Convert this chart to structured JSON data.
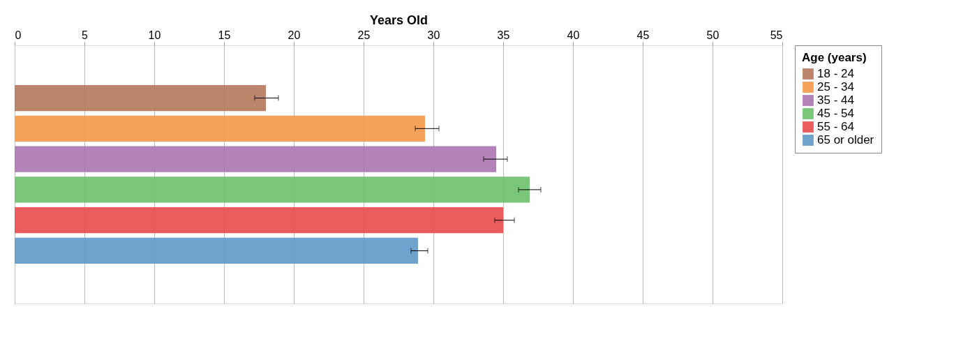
{
  "chart_data": {
    "type": "bar",
    "orientation": "horizontal",
    "xlabel": "Years Old",
    "legend_title": "Age (years)",
    "categories": [
      null
    ],
    "series": [
      {
        "name": "18 - 24",
        "color": "#b5775a",
        "values": [
          18.0
        ],
        "errors": [
          [
            17.2,
            18.9
          ]
        ]
      },
      {
        "name": "25 - 34",
        "color": "#f59848",
        "values": [
          29.4
        ],
        "errors": [
          [
            28.7,
            30.4
          ]
        ]
      },
      {
        "name": "35 - 44",
        "color": "#ab74b0",
        "values": [
          34.5
        ],
        "errors": [
          [
            33.6,
            35.3
          ]
        ]
      },
      {
        "name": "45 - 54",
        "color": "#6cc06c",
        "values": [
          36.9
        ],
        "errors": [
          [
            36.1,
            37.7
          ]
        ]
      },
      {
        "name": "55 - 64",
        "color": "#e84a4d",
        "values": [
          35.0
        ],
        "errors": [
          [
            34.4,
            35.8
          ]
        ]
      },
      {
        "name": "65 or older",
        "color": "#5f98c7",
        "values": [
          28.9
        ],
        "errors": [
          [
            28.4,
            29.6
          ]
        ]
      }
    ],
    "xlim": [
      0,
      55
    ],
    "xticks": [
      0,
      5,
      10,
      15,
      20,
      25,
      30,
      35,
      40,
      45,
      50,
      55
    ],
    "grid": "x",
    "legend": "right",
    "tick_labels": "x"
  }
}
